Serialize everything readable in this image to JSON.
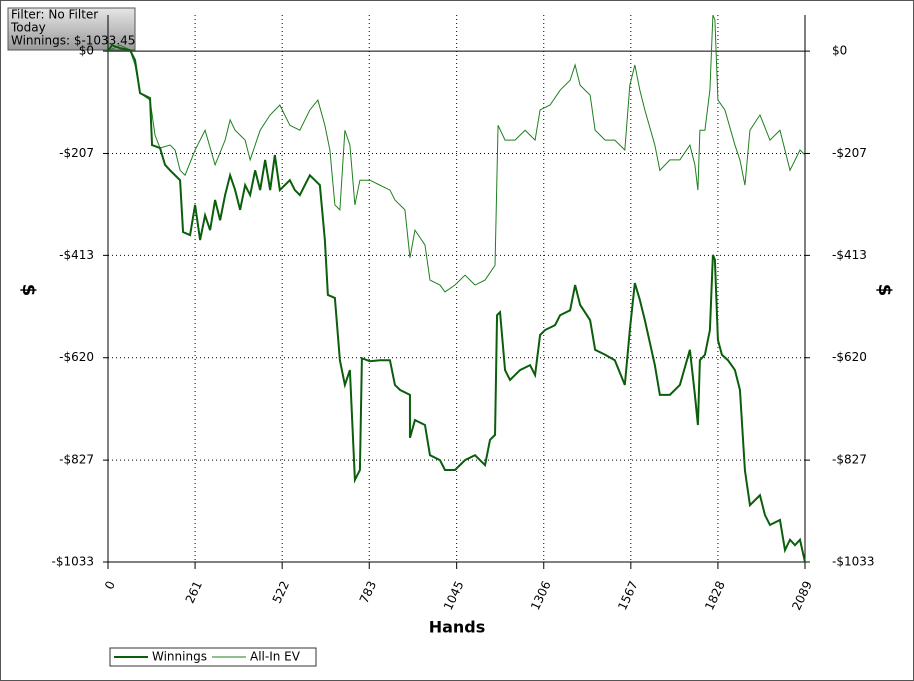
{
  "chart_data": {
    "type": "line",
    "info": [
      "Filter: No Filter",
      "Today",
      "Winnings: $-1033.45"
    ],
    "x_label": "Hands",
    "y_label": "$",
    "xlim": [
      0,
      2089
    ],
    "xticks": [
      0,
      261,
      522,
      783,
      1045,
      1306,
      1567,
      1828,
      2089
    ],
    "ylim": [
      -1033,
      73
    ],
    "yticks": [
      {
        "value": 0,
        "label": "$0"
      },
      {
        "value": -207,
        "label": "-$207"
      },
      {
        "value": -413,
        "label": "-$413"
      },
      {
        "value": -620,
        "label": "-$620"
      },
      {
        "value": -827,
        "label": "-$827"
      },
      {
        "value": -1033,
        "label": "-$1033"
      }
    ],
    "grid": true,
    "series": [
      {
        "name": "Winnings",
        "color": "#0b5e0b",
        "x": [
          0,
          12,
          36,
          66,
          81,
          96,
          126,
          132,
          156,
          171,
          186,
          201,
          216,
          225,
          246,
          261,
          276,
          291,
          306,
          321,
          336,
          351,
          366,
          381,
          396,
          411,
          426,
          441,
          456,
          471,
          486,
          500,
          515,
          530,
          545,
          560,
          575,
          590,
          605,
          620,
          635,
          650,
          659,
          680,
          695,
          710,
          725,
          740,
          755,
          761,
          785,
          815,
          845,
          860,
          875,
          905,
          905,
          920,
          950,
          965,
          995,
          1010,
          1040,
          1070,
          1100,
          1130,
          1145,
          1160,
          1166,
          1175,
          1190,
          1205,
          1235,
          1265,
          1280,
          1295,
          1310,
          1340,
          1355,
          1385,
          1400,
          1415,
          1445,
          1460,
          1490,
          1519,
          1549,
          1564,
          1579,
          1594,
          1609,
          1639,
          1654,
          1684,
          1714,
          1744,
          1759,
          1768,
          1774,
          1789,
          1804,
          1813,
          1819,
          1828,
          1840,
          1858,
          1879,
          1894,
          1909,
          1924,
          1954,
          1969,
          1984,
          2014,
          2029,
          2044,
          2059,
          2074,
          2089
        ],
        "values": [
          0,
          12,
          6,
          2,
          -18,
          -85,
          -95,
          -190,
          -196,
          -230,
          -241,
          -251,
          -261,
          -366,
          -372,
          -311,
          -382,
          -332,
          -362,
          -301,
          -342,
          -291,
          -251,
          -281,
          -321,
          -271,
          -291,
          -241,
          -281,
          -220,
          -281,
          -210,
          -281,
          -271,
          -261,
          -281,
          -291,
          -271,
          -251,
          -261,
          -271,
          -382,
          -493,
          -499,
          -625,
          -675,
          -645,
          -867,
          -847,
          -621,
          -627,
          -625,
          -625,
          -675,
          -685,
          -695,
          -782,
          -746,
          -756,
          -817,
          -827,
          -847,
          -847,
          -827,
          -817,
          -837,
          -786,
          -776,
          -534,
          -528,
          -645,
          -665,
          -645,
          -635,
          -655,
          -574,
          -564,
          -554,
          -534,
          -524,
          -473,
          -513,
          -544,
          -604,
          -614,
          -625,
          -675,
          -564,
          -469,
          -503,
          -544,
          -635,
          -695,
          -695,
          -675,
          -604,
          -695,
          -756,
          -625,
          -614,
          -564,
          -412,
          -422,
          -584,
          -614,
          -625,
          -645,
          -685,
          -848,
          -918,
          -898,
          -938,
          -958,
          -948,
          -1009,
          -988,
          -999,
          -988,
          -1033.45
        ]
      },
      {
        "name": "All-In EV",
        "color": "#1f7f1f",
        "x": [
          0,
          36,
          66,
          81,
          96,
          126,
          141,
          156,
          186,
          201,
          216,
          231,
          261,
          291,
          321,
          351,
          366,
          381,
          411,
          426,
          456,
          486,
          515,
          545,
          575,
          605,
          629,
          650,
          665,
          680,
          695,
          710,
          725,
          740,
          755,
          785,
          815,
          845,
          860,
          890,
          905,
          920,
          950,
          965,
          995,
          1010,
          1040,
          1070,
          1100,
          1130,
          1160,
          1169,
          1190,
          1220,
          1250,
          1280,
          1295,
          1325,
          1355,
          1385,
          1400,
          1415,
          1445,
          1460,
          1490,
          1519,
          1549,
          1564,
          1579,
          1594,
          1609,
          1639,
          1654,
          1684,
          1714,
          1744,
          1759,
          1768,
          1774,
          1789,
          1804,
          1813,
          1819,
          1828,
          1849,
          1879,
          1894,
          1909,
          1924,
          1954,
          1984,
          2014,
          2044,
          2074,
          2089
        ],
        "values": [
          0,
          12,
          2,
          -28,
          -85,
          -99,
          -170,
          -196,
          -190,
          -200,
          -241,
          -251,
          -200,
          -160,
          -230,
          -180,
          -139,
          -160,
          -180,
          -220,
          -160,
          -129,
          -109,
          -150,
          -160,
          -119,
          -99,
          -150,
          -200,
          -311,
          -321,
          -160,
          -190,
          -311,
          -261,
          -261,
          -271,
          -281,
          -301,
          -321,
          -418,
          -362,
          -392,
          -463,
          -473,
          -487,
          -473,
          -453,
          -473,
          -463,
          -433,
          -150,
          -180,
          -180,
          -160,
          -180,
          -119,
          -109,
          -79,
          -59,
          -28,
          -69,
          -89,
          -160,
          -180,
          -180,
          -200,
          -69,
          -28,
          -79,
          -119,
          -190,
          -241,
          -220,
          -220,
          -190,
          -230,
          -281,
          -160,
          -160,
          -79,
          73,
          63,
          -99,
          -119,
          -190,
          -220,
          -271,
          -160,
          -129,
          -180,
          -160,
          -241,
          -200,
          -210
        ]
      }
    ]
  }
}
